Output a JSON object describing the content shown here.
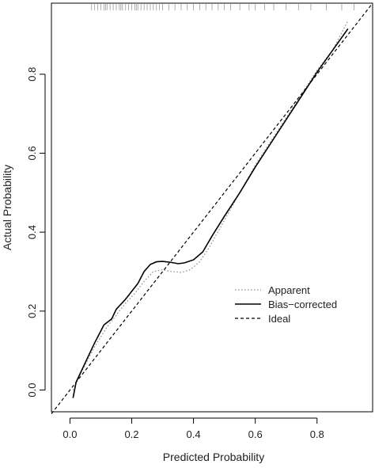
{
  "chart_data": {
    "type": "line",
    "title": "",
    "xlabel": "Predicted Probability",
    "ylabel": "Actual Probability",
    "xlim": [
      -0.06,
      0.98
    ],
    "ylim": [
      -0.055,
      0.98
    ],
    "x_ticks": [
      0.0,
      0.2,
      0.4,
      0.6,
      0.8
    ],
    "x_tick_labels": [
      "0.0",
      "0.2",
      "0.4",
      "0.6",
      "0.8"
    ],
    "y_ticks": [
      0.0,
      0.2,
      0.4,
      0.6,
      0.8
    ],
    "y_tick_labels": [
      "0.0",
      "0.2",
      "0.4",
      "0.6",
      "0.8"
    ],
    "grid": false,
    "legend_position": "lower-right",
    "rug": [
      0.07,
      0.08,
      0.09,
      0.1,
      0.11,
      0.115,
      0.12,
      0.13,
      0.14,
      0.15,
      0.16,
      0.165,
      0.17,
      0.18,
      0.19,
      0.2,
      0.21,
      0.215,
      0.22,
      0.23,
      0.24,
      0.25,
      0.26,
      0.27,
      0.28,
      0.29,
      0.3,
      0.32,
      0.34,
      0.36,
      0.38,
      0.4,
      0.42,
      0.44,
      0.46,
      0.48,
      0.5,
      0.52,
      0.55,
      0.58,
      0.6,
      0.63,
      0.66,
      0.7,
      0.74,
      0.78,
      0.83,
      0.88,
      0.92
    ],
    "series": [
      {
        "name": "Apparent",
        "style": "dotted",
        "color": "#888888",
        "points": [
          [
            0.01,
            0.0
          ],
          [
            0.04,
            0.05
          ],
          [
            0.08,
            0.11
          ],
          [
            0.12,
            0.16
          ],
          [
            0.15,
            0.19
          ],
          [
            0.18,
            0.22
          ],
          [
            0.21,
            0.245
          ],
          [
            0.24,
            0.275
          ],
          [
            0.27,
            0.3
          ],
          [
            0.3,
            0.305
          ],
          [
            0.33,
            0.3
          ],
          [
            0.36,
            0.298
          ],
          [
            0.39,
            0.305
          ],
          [
            0.42,
            0.325
          ],
          [
            0.45,
            0.36
          ],
          [
            0.5,
            0.43
          ],
          [
            0.55,
            0.5
          ],
          [
            0.6,
            0.57
          ],
          [
            0.65,
            0.63
          ],
          [
            0.7,
            0.69
          ],
          [
            0.75,
            0.75
          ],
          [
            0.8,
            0.81
          ],
          [
            0.85,
            0.86
          ],
          [
            0.9,
            0.935
          ]
        ]
      },
      {
        "name": "Bias−corrected",
        "style": "solid",
        "color": "#000000",
        "points": [
          [
            0.01,
            -0.02
          ],
          [
            0.02,
            0.02
          ],
          [
            0.05,
            0.07
          ],
          [
            0.08,
            0.12
          ],
          [
            0.11,
            0.165
          ],
          [
            0.135,
            0.18
          ],
          [
            0.15,
            0.205
          ],
          [
            0.18,
            0.23
          ],
          [
            0.2,
            0.25
          ],
          [
            0.22,
            0.27
          ],
          [
            0.24,
            0.3
          ],
          [
            0.26,
            0.318
          ],
          [
            0.28,
            0.325
          ],
          [
            0.3,
            0.326
          ],
          [
            0.33,
            0.323
          ],
          [
            0.35,
            0.32
          ],
          [
            0.37,
            0.322
          ],
          [
            0.4,
            0.33
          ],
          [
            0.43,
            0.35
          ],
          [
            0.46,
            0.39
          ],
          [
            0.5,
            0.44
          ],
          [
            0.55,
            0.5
          ],
          [
            0.6,
            0.565
          ],
          [
            0.65,
            0.625
          ],
          [
            0.7,
            0.685
          ],
          [
            0.75,
            0.745
          ],
          [
            0.8,
            0.805
          ],
          [
            0.85,
            0.86
          ],
          [
            0.9,
            0.915
          ]
        ]
      },
      {
        "name": "Ideal",
        "style": "dashed",
        "color": "#000000",
        "points": [
          [
            -0.06,
            -0.06
          ],
          [
            0.98,
            0.98
          ]
        ]
      }
    ]
  }
}
